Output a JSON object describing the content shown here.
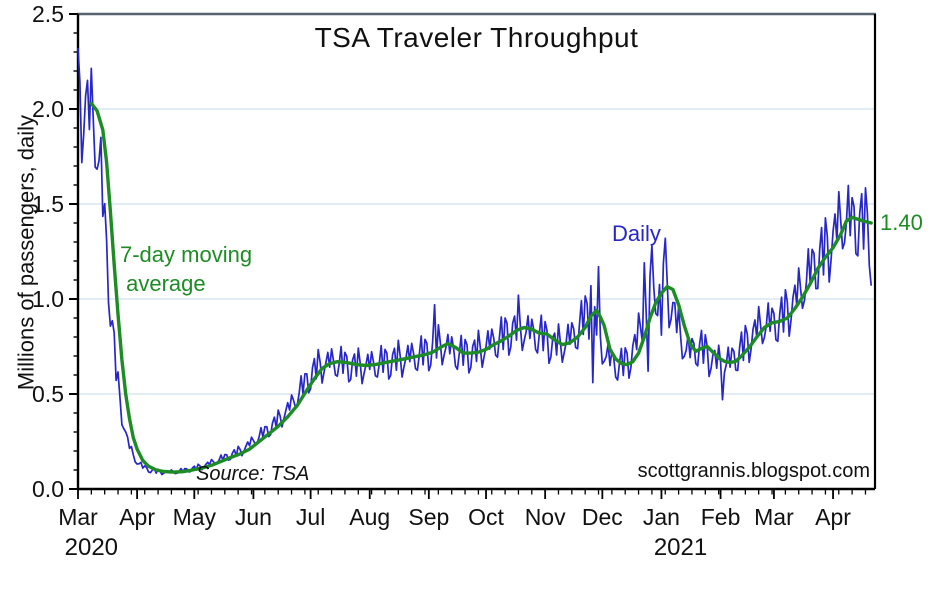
{
  "page": {
    "background": "#ffffff"
  },
  "colors": {
    "daily_line": "#2626c9",
    "ma_line": "#1d8c24",
    "grid": "#d9e6f1",
    "axis": "#000000",
    "top_border": "#566470",
    "text": "#111111"
  },
  "annotations": {
    "ma_label_line1": "7-day moving",
    "ma_label_line2": " average",
    "daily_label": "Daily",
    "last_value_label": "1.40",
    "source": "Source: TSA",
    "watermark": "scottgrannis.blogspot.com"
  },
  "chart_data": {
    "type": "line",
    "title": "TSA Traveler Throughput",
    "xlabel": "",
    "ylabel": "Millions of passengers, daily",
    "ylim": [
      0,
      2.5
    ],
    "y_major_step": 0.5,
    "y_minor_step": 0.1,
    "y_tick_labels": [
      "0.0",
      "0.5",
      "1.0",
      "1.5",
      "2.0",
      "2.5"
    ],
    "grid": "horizontal-major",
    "legend_position": "inline-annotations",
    "x_start_date": "2020-03-01",
    "total_days": 418,
    "x_minor_tick_every_days": 7,
    "month_ticks": [
      {
        "label": "Mar",
        "day": 0
      },
      {
        "label": "Apr",
        "day": 31
      },
      {
        "label": "May",
        "day": 61
      },
      {
        "label": "Jun",
        "day": 92
      },
      {
        "label": "Jul",
        "day": 122
      },
      {
        "label": "Aug",
        "day": 153
      },
      {
        "label": "Sep",
        "day": 184
      },
      {
        "label": "Oct",
        "day": 214
      },
      {
        "label": "Nov",
        "day": 245
      },
      {
        "label": "Dec",
        "day": 275
      },
      {
        "label": "Jan",
        "day": 306
      },
      {
        "label": "Feb",
        "day": 337
      },
      {
        "label": "Mar",
        "day": 365
      },
      {
        "label": "Apr",
        "day": 396
      }
    ],
    "year_labels": [
      {
        "label": "2020",
        "day": 7
      },
      {
        "label": "2021",
        "day": 316
      }
    ],
    "series": [
      {
        "name": "7-day moving average",
        "style": "smooth",
        "draw_from_day": 7,
        "last_value": 1.4,
        "anchors": [
          [
            0,
            2.06
          ],
          [
            4,
            2.06
          ],
          [
            7,
            2.03
          ],
          [
            10,
            1.99
          ],
          [
            13,
            1.89
          ],
          [
            15,
            1.72
          ],
          [
            17,
            1.46
          ],
          [
            19,
            1.18
          ],
          [
            21,
            0.92
          ],
          [
            23,
            0.68
          ],
          [
            25,
            0.5
          ],
          [
            27,
            0.37
          ],
          [
            29,
            0.27
          ],
          [
            31,
            0.21
          ],
          [
            34,
            0.15
          ],
          [
            37,
            0.12
          ],
          [
            41,
            0.1
          ],
          [
            45,
            0.092
          ],
          [
            50,
            0.089
          ],
          [
            55,
            0.091
          ],
          [
            60,
            0.1
          ],
          [
            65,
            0.11
          ],
          [
            70,
            0.125
          ],
          [
            75,
            0.145
          ],
          [
            80,
            0.165
          ],
          [
            85,
            0.185
          ],
          [
            90,
            0.21
          ],
          [
            95,
            0.25
          ],
          [
            100,
            0.29
          ],
          [
            105,
            0.33
          ],
          [
            110,
            0.38
          ],
          [
            115,
            0.44
          ],
          [
            120,
            0.52
          ],
          [
            124,
            0.58
          ],
          [
            128,
            0.635
          ],
          [
            132,
            0.66
          ],
          [
            136,
            0.67
          ],
          [
            141,
            0.665
          ],
          [
            146,
            0.655
          ],
          [
            151,
            0.65
          ],
          [
            156,
            0.655
          ],
          [
            161,
            0.665
          ],
          [
            166,
            0.675
          ],
          [
            171,
            0.685
          ],
          [
            176,
            0.695
          ],
          [
            181,
            0.705
          ],
          [
            186,
            0.72
          ],
          [
            190,
            0.745
          ],
          [
            194,
            0.765
          ],
          [
            198,
            0.745
          ],
          [
            202,
            0.715
          ],
          [
            206,
            0.715
          ],
          [
            210,
            0.72
          ],
          [
            214,
            0.735
          ],
          [
            218,
            0.76
          ],
          [
            222,
            0.78
          ],
          [
            226,
            0.805
          ],
          [
            230,
            0.835
          ],
          [
            234,
            0.85
          ],
          [
            238,
            0.84
          ],
          [
            242,
            0.82
          ],
          [
            246,
            0.815
          ],
          [
            250,
            0.785
          ],
          [
            254,
            0.76
          ],
          [
            258,
            0.77
          ],
          [
            262,
            0.8
          ],
          [
            266,
            0.85
          ],
          [
            269,
            0.91
          ],
          [
            272,
            0.94
          ],
          [
            274,
            0.905
          ],
          [
            276,
            0.86
          ],
          [
            279,
            0.735
          ],
          [
            282,
            0.685
          ],
          [
            285,
            0.66
          ],
          [
            288,
            0.655
          ],
          [
            291,
            0.67
          ],
          [
            294,
            0.715
          ],
          [
            297,
            0.8
          ],
          [
            300,
            0.9
          ],
          [
            303,
            0.98
          ],
          [
            306,
            1.03
          ],
          [
            309,
            1.065
          ],
          [
            312,
            1.05
          ],
          [
            315,
            0.97
          ],
          [
            318,
            0.86
          ],
          [
            321,
            0.765
          ],
          [
            324,
            0.725
          ],
          [
            327,
            0.74
          ],
          [
            330,
            0.75
          ],
          [
            333,
            0.72
          ],
          [
            336,
            0.69
          ],
          [
            339,
            0.672
          ],
          [
            342,
            0.665
          ],
          [
            345,
            0.672
          ],
          [
            348,
            0.7
          ],
          [
            352,
            0.745
          ],
          [
            356,
            0.8
          ],
          [
            360,
            0.85
          ],
          [
            364,
            0.875
          ],
          [
            368,
            0.882
          ],
          [
            372,
            0.9
          ],
          [
            376,
            0.95
          ],
          [
            380,
            1.01
          ],
          [
            384,
            1.08
          ],
          [
            388,
            1.16
          ],
          [
            392,
            1.22
          ],
          [
            396,
            1.27
          ],
          [
            400,
            1.34
          ],
          [
            403,
            1.41
          ],
          [
            406,
            1.43
          ],
          [
            409,
            1.42
          ],
          [
            412,
            1.41
          ],
          [
            416,
            1.4
          ]
        ]
      },
      {
        "name": "Daily",
        "style": "derived-daily",
        "days": 417,
        "ma_lead_days": 3.5,
        "weekday_pattern_sun_to_sat": [
          0.11,
          0.03,
          -0.13,
          -0.1,
          0.01,
          0.1,
          -0.07
        ],
        "jitter_amp": 0.03,
        "overrides": {
          "187": 0.97,
          "231": 1.02,
          "269": 1.07,
          "270": 0.56,
          "273": 1.17,
          "297": 1.19,
          "299": 0.62,
          "300": 1.12,
          "301": 1.28,
          "306": 0.81,
          "307": 1.19,
          "308": 1.32,
          "338": 0.47,
          "416": 1.07
        }
      }
    ]
  }
}
